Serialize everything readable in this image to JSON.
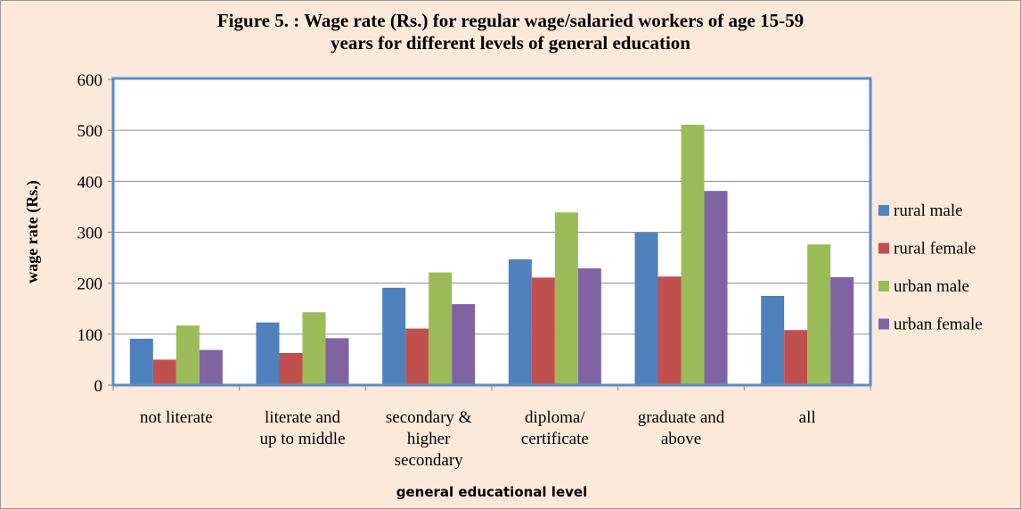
{
  "chart_data": {
    "type": "bar",
    "title": "Figure  5. : Wage rate (Rs.) for regular wage/salaried workers of age 15-59\nyears for different levels of general education",
    "x_label": "general educational level",
    "y_label": "wage rate (Rs.)",
    "categories": [
      "not literate",
      "literate and\nup to middle",
      "secondary &\nhigher\nsecondary",
      "diploma/\ncertificate",
      "graduate and\nabove",
      "all"
    ],
    "series": [
      {
        "name": "rural male",
        "color": "#4f81bd",
        "values": [
          91,
          123,
          191,
          247,
          299,
          175
        ]
      },
      {
        "name": "rural female",
        "color": "#c0504d",
        "values": [
          50,
          63,
          111,
          211,
          213,
          108
        ]
      },
      {
        "name": "urban male",
        "color": "#9bbb59",
        "values": [
          117,
          143,
          221,
          339,
          511,
          276
        ]
      },
      {
        "name": "urban female",
        "color": "#8064a2",
        "values": [
          69,
          92,
          159,
          229,
          381,
          212
        ]
      }
    ],
    "ylim": [
      0,
      600
    ],
    "yticks": [
      0,
      100,
      200,
      300,
      400,
      500,
      600
    ],
    "grid": true,
    "legend": "right"
  }
}
